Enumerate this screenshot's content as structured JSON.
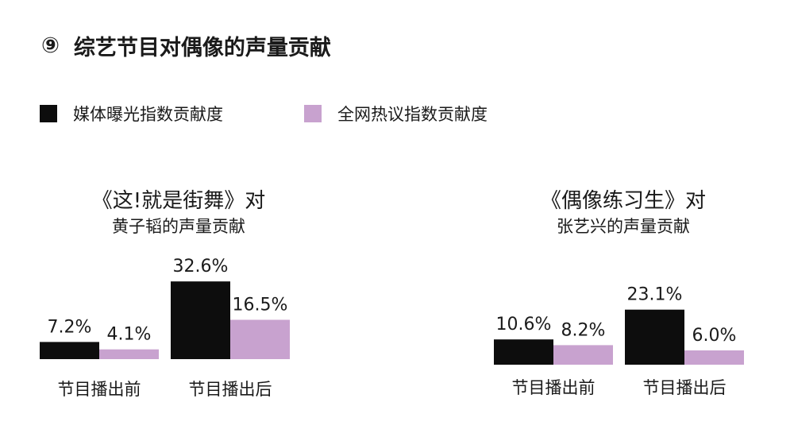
{
  "header": {
    "number": "⑨",
    "title": "综艺节目对偶像的声量贡献"
  },
  "legend": [
    {
      "label": "媒体曝光指数贡献度",
      "color": "#0d0d0d"
    },
    {
      "label": "全网热议指数贡献度",
      "color": "#c8a2cf"
    }
  ],
  "chart_data": [
    {
      "type": "bar",
      "title_line1": "《这!就是街舞》对",
      "title_line2": "黄子韬的声量贡献",
      "categories": [
        "节目播出前",
        "节目播出后"
      ],
      "series": [
        {
          "name": "媒体曝光指数贡献度",
          "values": [
            7.2,
            32.6
          ],
          "labels": [
            "7.2%",
            "32.6%"
          ],
          "color": "#0d0d0d"
        },
        {
          "name": "全网热议指数贡献度",
          "values": [
            4.1,
            16.5
          ],
          "labels": [
            "4.1%",
            "16.5%"
          ],
          "color": "#c8a2cf"
        }
      ],
      "ylim": [
        0,
        32.6
      ],
      "grid": false
    },
    {
      "type": "bar",
      "title_line1": "《偶像练习生》对",
      "title_line2": "张艺兴的声量贡献",
      "categories": [
        "节目播出前",
        "节目播出后"
      ],
      "series": [
        {
          "name": "媒体曝光指数贡献度",
          "values": [
            10.6,
            23.1
          ],
          "labels": [
            "10.6%",
            "23.1%"
          ],
          "color": "#0d0d0d"
        },
        {
          "name": "全网热议指数贡献度",
          "values": [
            8.2,
            6.0
          ],
          "labels": [
            "8.2%",
            "6.0%"
          ],
          "color": "#c8a2cf"
        }
      ],
      "ylim": [
        0,
        32.6
      ],
      "grid": false
    }
  ]
}
